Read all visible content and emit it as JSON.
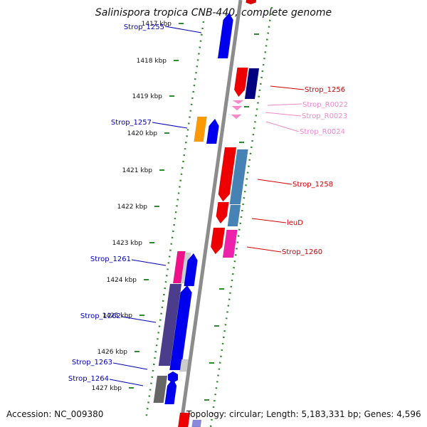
{
  "title": "Salinispora tropica CNB-440, complete genome",
  "accession": "Accession: NC_009380",
  "stats": "Topology: circular; Length: 5,183,331 bp; Genes: 4,596",
  "colors": {
    "backbone": "#8c8c8c",
    "ticks": "#2e8b2e",
    "forward_label": "#0000b4",
    "reverse_label": "#d00000",
    "rna_label": "#ee88cc"
  },
  "ruler": [
    {
      "label": "1417 kbp"
    },
    {
      "label": "1418 kbp"
    },
    {
      "label": "1419 kbp"
    },
    {
      "label": "1420 kbp"
    },
    {
      "label": "1421 kbp"
    },
    {
      "label": "1422 kbp"
    },
    {
      "label": "1423 kbp"
    },
    {
      "label": "1424 kbp"
    },
    {
      "label": "1425 kbp"
    },
    {
      "label": "1426 kbp"
    },
    {
      "label": "1427 kbp"
    }
  ],
  "gene_labels": [
    {
      "name": "Strop_1255",
      "strand": "forward"
    },
    {
      "name": "Strop_1256",
      "strand": "reverse"
    },
    {
      "name": "Strop_R0022",
      "strand": "rna"
    },
    {
      "name": "Strop_R0023",
      "strand": "rna"
    },
    {
      "name": "Strop_R0024",
      "strand": "rna"
    },
    {
      "name": "Strop_1257",
      "strand": "forward"
    },
    {
      "name": "Strop_1258",
      "strand": "reverse"
    },
    {
      "name": "leuD",
      "strand": "reverse"
    },
    {
      "name": "Strop_1260",
      "strand": "reverse"
    },
    {
      "name": "Strop_1261",
      "strand": "forward"
    },
    {
      "name": "Strop_1262",
      "strand": "forward"
    },
    {
      "name": "Strop_1263",
      "strand": "forward"
    },
    {
      "name": "Strop_1264",
      "strand": "forward"
    }
  ]
}
